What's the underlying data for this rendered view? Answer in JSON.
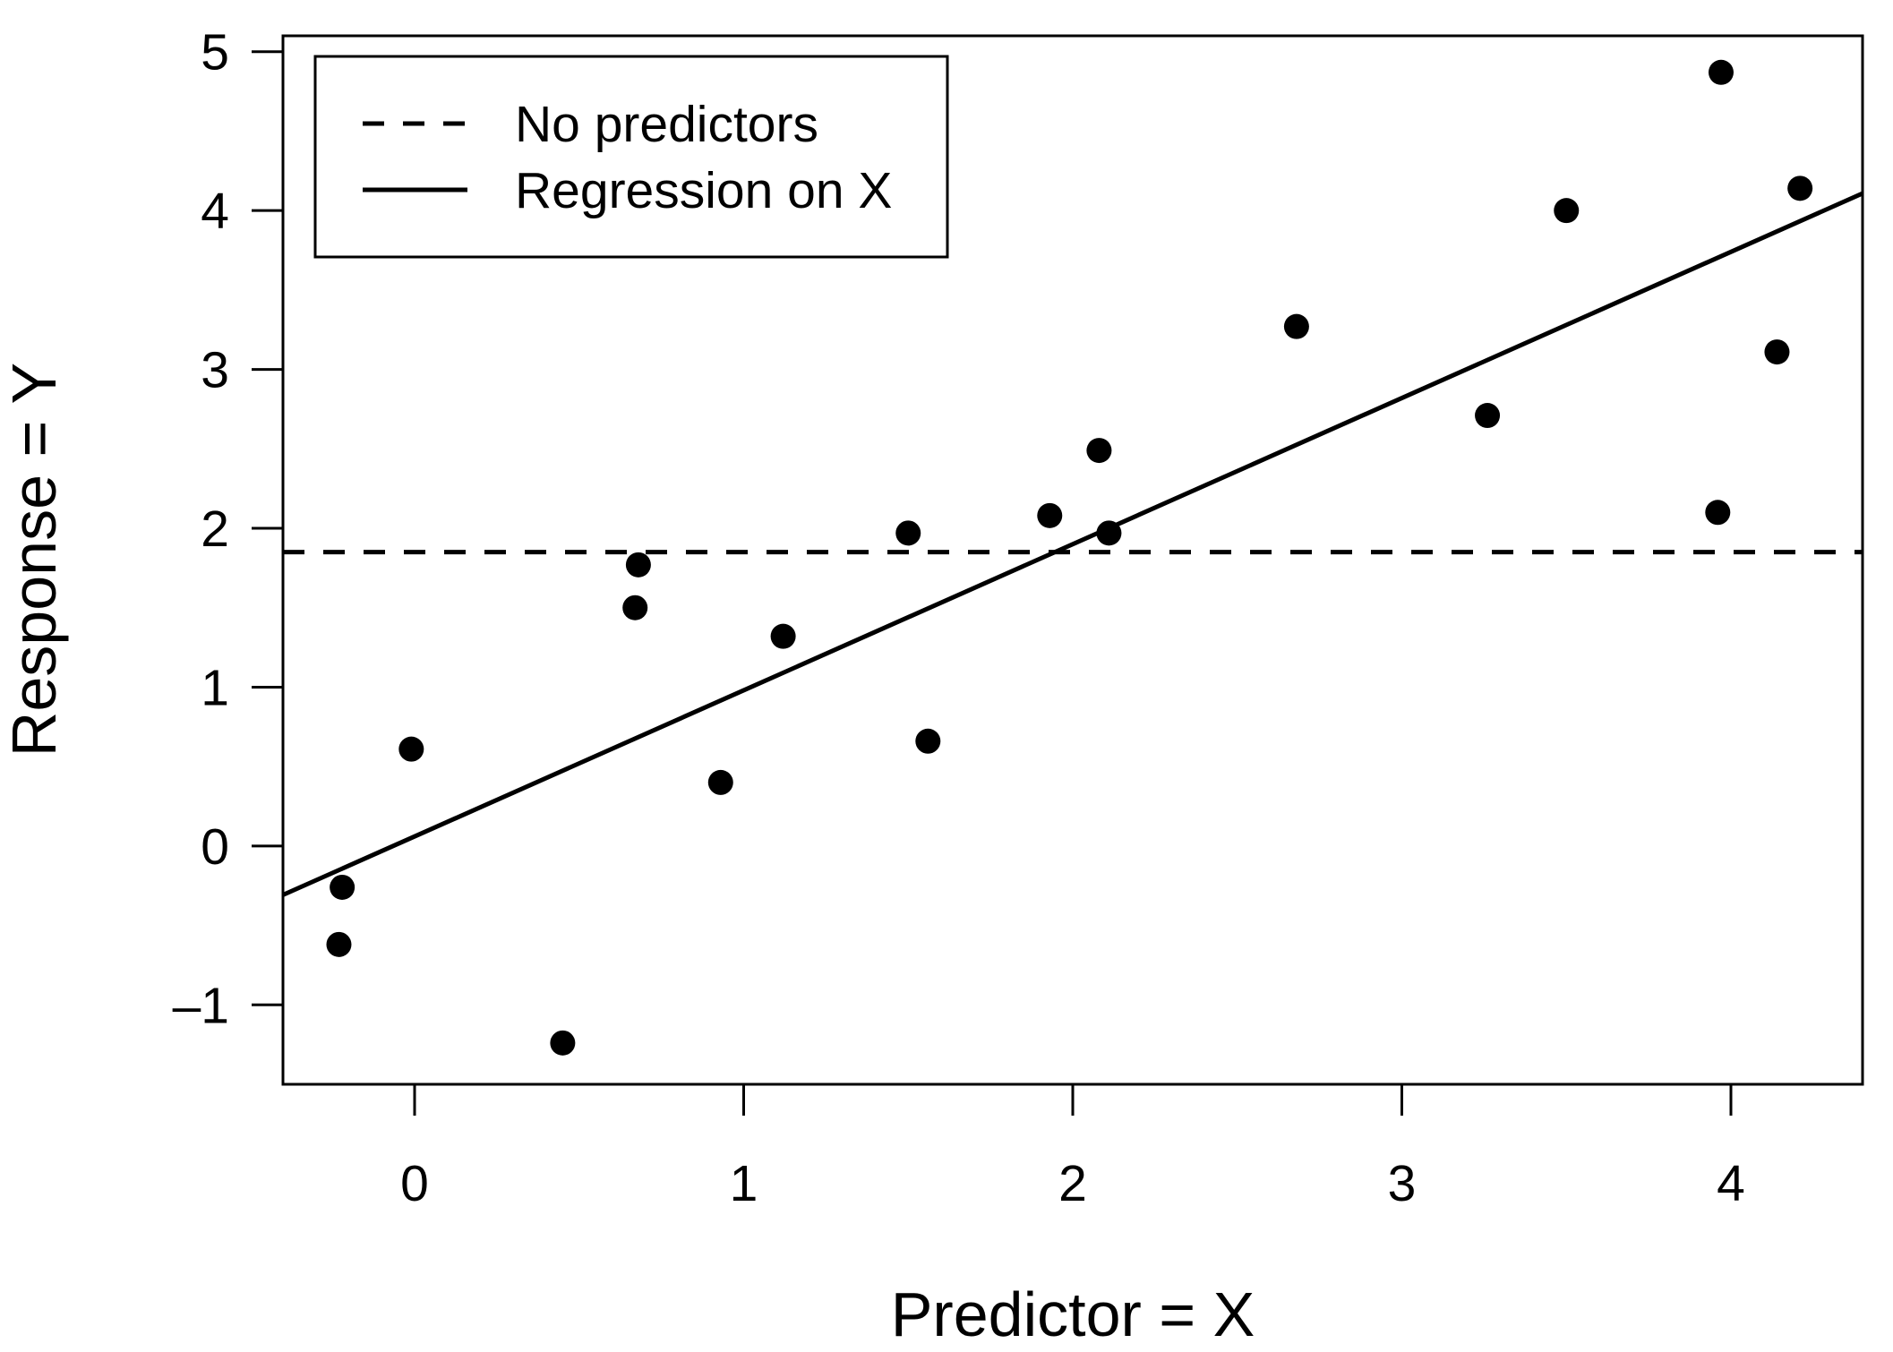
{
  "chart_data": {
    "type": "scatter",
    "xlabel": "Predictor = X",
    "ylabel": "Response = Y",
    "xlim": [
      -0.4,
      4.4
    ],
    "ylim": [
      -1.5,
      5.1
    ],
    "x_ticks": [
      0,
      1,
      2,
      3,
      4
    ],
    "y_ticks": [
      -1,
      0,
      1,
      2,
      3,
      4,
      5
    ],
    "x_tick_labels": [
      "0",
      "1",
      "2",
      "3",
      "4"
    ],
    "y_tick_labels": [
      "–1",
      "0",
      "1",
      "2",
      "3",
      "4",
      "5"
    ],
    "grid": false,
    "legend_position": "top-left",
    "legend": [
      {
        "label": "No predictors",
        "style": "dashed"
      },
      {
        "label": "Regression on X",
        "style": "solid"
      }
    ],
    "points": {
      "x": [
        -0.22,
        -0.23,
        -0.01,
        0.45,
        0.67,
        0.68,
        0.93,
        1.12,
        1.5,
        1.56,
        1.93,
        2.08,
        2.11,
        2.68,
        3.26,
        3.5,
        3.96,
        3.97,
        4.14,
        4.21
      ],
      "y": [
        -0.26,
        -0.62,
        0.61,
        -1.24,
        1.5,
        1.77,
        0.4,
        1.32,
        1.97,
        0.66,
        2.08,
        2.49,
        1.97,
        3.27,
        2.71,
        4.0,
        2.1,
        4.87,
        3.11,
        4.14
      ]
    },
    "horizontal_line": {
      "y": 1.85,
      "style": "dashed",
      "name": "No predictors"
    },
    "regression_line": {
      "intercept": 0.06,
      "slope": 0.92,
      "style": "solid",
      "name": "Regression on X"
    },
    "colors": {
      "points": "#000000",
      "lines": "#000000",
      "background": "#ffffff"
    }
  }
}
